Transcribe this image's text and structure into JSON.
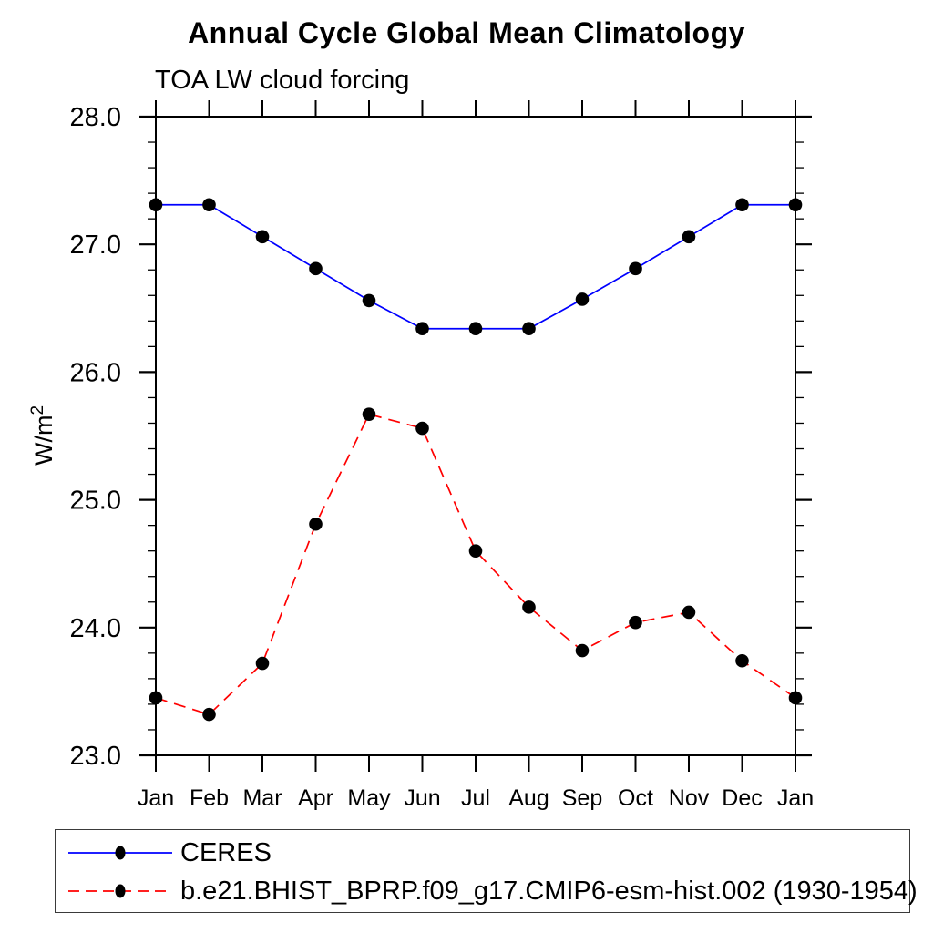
{
  "title": "Annual Cycle Global Mean Climatology",
  "subtitle": "TOA LW cloud forcing",
  "chart_data": {
    "type": "line",
    "title": "Annual Cycle Global Mean Climatology",
    "subtitle": "TOA LW cloud forcing",
    "ylabel": "W/m2",
    "ylabel_base": "W/m",
    "ylabel_exponent": "2",
    "xlabel": "",
    "categories": [
      "Jan",
      "Feb",
      "Mar",
      "Apr",
      "May",
      "Jun",
      "Jul",
      "Aug",
      "Sep",
      "Oct",
      "Nov",
      "Dec",
      "Jan"
    ],
    "ylim": [
      23.0,
      28.0
    ],
    "y_major_ticks": [
      23.0,
      24.0,
      25.0,
      26.0,
      27.0,
      28.0
    ],
    "y_tick_labels": [
      "23.0",
      "24.0",
      "25.0",
      "26.0",
      "27.0",
      "28.0"
    ],
    "y_minor_step": 0.2,
    "grid": false,
    "legend_position": "bottom-left-box",
    "axis_color": "#000000",
    "marker_color": "#000000",
    "series": [
      {
        "name": "CERES",
        "color": "#0000ff",
        "style": "solid",
        "marker": "circle",
        "values": [
          27.31,
          27.31,
          27.06,
          26.81,
          26.56,
          26.34,
          26.34,
          26.34,
          26.57,
          26.81,
          27.06,
          27.31,
          27.31
        ]
      },
      {
        "name": "b.e21.BHIST_BPRP.f09_g17.CMIP6-esm-hist.002 (1930-1954)",
        "color": "#ff0000",
        "style": "dashed",
        "marker": "circle",
        "values": [
          23.45,
          23.32,
          23.72,
          24.81,
          25.67,
          25.56,
          24.6,
          24.16,
          23.82,
          24.04,
          24.12,
          23.74,
          23.45
        ]
      }
    ]
  }
}
